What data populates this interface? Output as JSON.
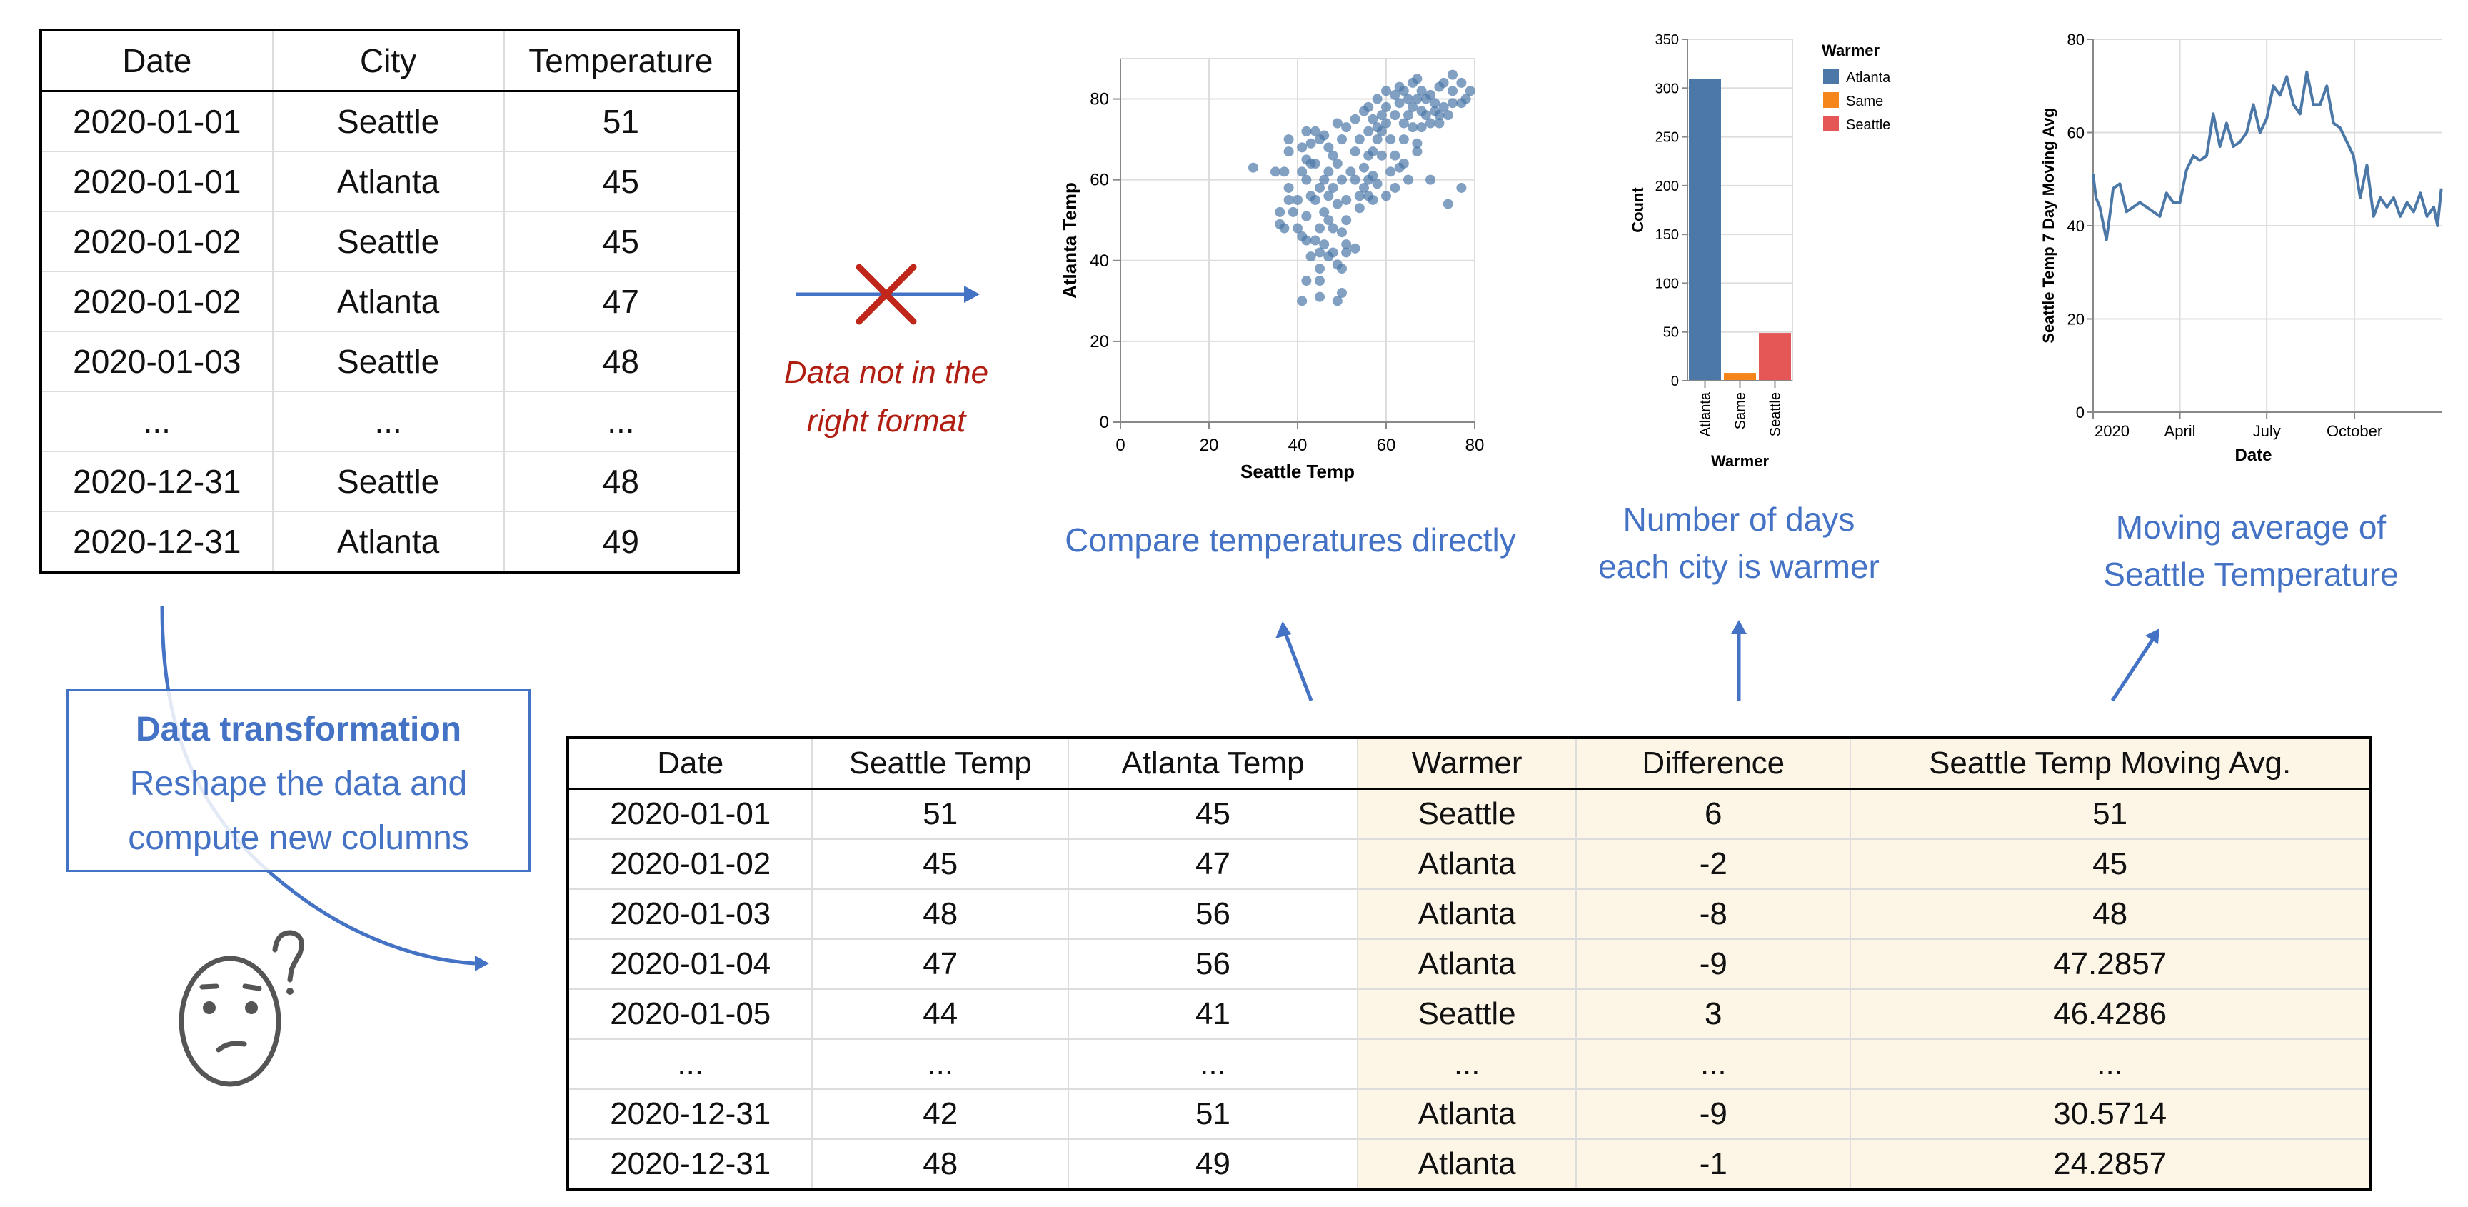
{
  "source_table": {
    "columns": [
      "Date",
      "City",
      "Temperature"
    ],
    "rows": [
      [
        "2020-01-01",
        "Seattle",
        "51"
      ],
      [
        "2020-01-01",
        "Atlanta",
        "45"
      ],
      [
        "2020-01-02",
        "Seattle",
        "45"
      ],
      [
        "2020-01-02",
        "Atlanta",
        "47"
      ],
      [
        "2020-01-03",
        "Seattle",
        "48"
      ],
      [
        "...",
        "...",
        "..."
      ],
      [
        "2020-12-31",
        "Seattle",
        "48"
      ],
      [
        "2020-12-31",
        "Atlanta",
        "49"
      ]
    ]
  },
  "error_note": {
    "line1": "Data not in the",
    "line2": "right format",
    "color": "#b01e12",
    "icon": "cross-icon"
  },
  "transform_box": {
    "title": "Data transformation",
    "line1": "Reshape the data and",
    "line2": "compute new columns",
    "icon": "confused-face-icon"
  },
  "result_table": {
    "columns": [
      "Date",
      "Seattle Temp",
      "Atlanta Temp",
      "Warmer",
      "Difference",
      "Seattle Temp Moving Avg."
    ],
    "highlight_color": "#fdf5e6",
    "rows": [
      [
        "2020-01-01",
        "51",
        "45",
        "Seattle",
        "6",
        "51"
      ],
      [
        "2020-01-02",
        "45",
        "47",
        "Atlanta",
        "-2",
        "45"
      ],
      [
        "2020-01-03",
        "48",
        "56",
        "Atlanta",
        "-8",
        "48"
      ],
      [
        "2020-01-04",
        "47",
        "56",
        "Atlanta",
        "-9",
        "47.2857"
      ],
      [
        "2020-01-05",
        "44",
        "41",
        "Seattle",
        "3",
        "46.4286"
      ],
      [
        "...",
        "...",
        "...",
        "...",
        "...",
        "..."
      ],
      [
        "2020-12-31",
        "42",
        "51",
        "Atlanta",
        "-9",
        "30.5714"
      ],
      [
        "2020-12-31",
        "48",
        "49",
        "Atlanta",
        "-1",
        "24.2857"
      ]
    ]
  },
  "captions": {
    "scatter": "Compare temperatures directly",
    "bar_line1": "Number of days",
    "bar_line2": "each city is warmer",
    "line_line1": "Moving average of",
    "line_line2": "Seattle Temperature",
    "color": "#4472c4"
  },
  "chart_data": [
    {
      "type": "scatter",
      "xlabel": "Seattle Temp",
      "ylabel": "Atlanta Temp",
      "xlim": [
        0,
        80
      ],
      "ylim": [
        0,
        90
      ],
      "xticks": [
        "0",
        "20",
        "40",
        "60",
        "80"
      ],
      "yticks": [
        "0",
        "20",
        "40",
        "60",
        "80"
      ],
      "grid": true,
      "color": "#4c78a8",
      "points": [
        [
          30,
          63
        ],
        [
          35,
          62
        ],
        [
          37,
          62
        ],
        [
          38,
          70
        ],
        [
          38,
          67
        ],
        [
          38,
          58
        ],
        [
          38,
          55
        ],
        [
          36,
          52
        ],
        [
          36,
          49
        ],
        [
          37,
          48
        ],
        [
          39,
          52
        ],
        [
          40,
          55
        ],
        [
          40,
          48
        ],
        [
          41,
          62
        ],
        [
          41,
          68
        ],
        [
          41,
          46
        ],
        [
          41,
          30
        ],
        [
          42,
          72
        ],
        [
          42,
          65
        ],
        [
          42,
          60
        ],
        [
          42,
          51
        ],
        [
          42,
          45
        ],
        [
          42,
          35
        ],
        [
          43,
          69
        ],
        [
          43,
          64
        ],
        [
          43,
          56
        ],
        [
          43,
          41
        ],
        [
          44,
          72
        ],
        [
          44,
          64
        ],
        [
          44,
          55
        ],
        [
          44,
          45
        ],
        [
          45,
          70
        ],
        [
          45,
          58
        ],
        [
          45,
          48
        ],
        [
          45,
          42
        ],
        [
          45,
          38
        ],
        [
          45,
          35
        ],
        [
          45,
          31
        ],
        [
          46,
          71
        ],
        [
          46,
          60
        ],
        [
          46,
          52
        ],
        [
          46,
          44
        ],
        [
          47,
          68
        ],
        [
          47,
          62
        ],
        [
          47,
          56
        ],
        [
          47,
          50
        ],
        [
          47,
          41
        ],
        [
          48,
          66
        ],
        [
          48,
          58
        ],
        [
          48,
          48
        ],
        [
          48,
          42
        ],
        [
          49,
          74
        ],
        [
          49,
          64
        ],
        [
          49,
          54
        ],
        [
          49,
          39
        ],
        [
          49,
          30
        ],
        [
          50,
          70
        ],
        [
          50,
          60
        ],
        [
          50,
          47
        ],
        [
          50,
          38
        ],
        [
          50,
          32
        ],
        [
          51,
          73
        ],
        [
          51,
          55
        ],
        [
          51,
          50
        ],
        [
          51,
          44
        ],
        [
          51,
          42
        ],
        [
          52,
          62
        ],
        [
          53,
          75
        ],
        [
          53,
          67
        ],
        [
          53,
          60
        ],
        [
          53,
          43
        ],
        [
          54,
          70
        ],
        [
          54,
          56
        ],
        [
          54,
          53
        ],
        [
          55,
          77
        ],
        [
          55,
          63
        ],
        [
          55,
          58
        ],
        [
          56,
          78
        ],
        [
          56,
          72
        ],
        [
          56,
          66
        ],
        [
          56,
          60
        ],
        [
          56,
          56
        ],
        [
          57,
          75
        ],
        [
          57,
          67
        ],
        [
          57,
          61
        ],
        [
          57,
          55
        ],
        [
          58,
          80
        ],
        [
          58,
          73
        ],
        [
          58,
          70
        ],
        [
          58,
          59
        ],
        [
          59,
          76
        ],
        [
          59,
          72
        ],
        [
          59,
          66
        ],
        [
          60,
          82
        ],
        [
          60,
          78
        ],
        [
          60,
          74
        ],
        [
          60,
          56
        ],
        [
          61,
          70
        ],
        [
          61,
          62
        ],
        [
          62,
          81
        ],
        [
          62,
          76
        ],
        [
          62,
          66
        ],
        [
          62,
          58
        ],
        [
          63,
          83
        ],
        [
          63,
          79
        ],
        [
          63,
          63
        ],
        [
          64,
          82
        ],
        [
          64,
          74
        ],
        [
          64,
          70
        ],
        [
          64,
          64
        ],
        [
          65,
          80
        ],
        [
          65,
          76
        ],
        [
          65,
          60
        ],
        [
          66,
          84
        ],
        [
          66,
          78
        ],
        [
          66,
          73
        ],
        [
          67,
          85
        ],
        [
          67,
          80
        ],
        [
          67,
          69
        ],
        [
          67,
          67
        ],
        [
          68,
          82
        ],
        [
          68,
          77
        ],
        [
          68,
          73
        ],
        [
          69,
          80
        ],
        [
          69,
          76
        ],
        [
          70,
          81
        ],
        [
          70,
          74
        ],
        [
          70,
          60
        ],
        [
          71,
          79
        ],
        [
          71,
          77
        ],
        [
          72,
          83
        ],
        [
          72,
          76
        ],
        [
          72,
          74
        ],
        [
          73,
          84
        ],
        [
          73,
          78
        ],
        [
          74,
          76
        ],
        [
          74,
          54
        ],
        [
          75,
          86
        ],
        [
          75,
          82
        ],
        [
          75,
          79
        ],
        [
          77,
          79
        ],
        [
          77,
          84
        ],
        [
          77,
          58
        ],
        [
          78,
          80
        ],
        [
          79,
          82
        ]
      ]
    },
    {
      "type": "bar",
      "xlabel": "Warmer",
      "ylabel": "Count",
      "categories": [
        "Atlanta",
        "Same",
        "Seattle"
      ],
      "values": [
        309,
        8,
        49
      ],
      "colors": [
        "#4c78a8",
        "#f58518",
        "#e45756"
      ],
      "ylim": [
        0,
        350
      ],
      "yticks": [
        "0",
        "50",
        "100",
        "150",
        "200",
        "250",
        "300",
        "350"
      ],
      "legend": {
        "title": "Warmer",
        "entries": [
          "Atlanta",
          "Same",
          "Seattle"
        ],
        "placement": "right"
      },
      "grid": true
    },
    {
      "type": "line",
      "xlabel": "Date",
      "ylabel": "Seattle Temp 7 Day Moving Avg",
      "ylim": [
        0,
        80
      ],
      "yticks": [
        "0",
        "20",
        "40",
        "60",
        "80"
      ],
      "xticks": [
        "2020",
        "April",
        "July",
        "October"
      ],
      "grid": true,
      "color": "#4c78a8",
      "points": [
        [
          "2020-01-01",
          51
        ],
        [
          "2020-01-04",
          46
        ],
        [
          "2020-01-08",
          44
        ],
        [
          "2020-01-12",
          40
        ],
        [
          "2020-01-15",
          37
        ],
        [
          "2020-01-19",
          43
        ],
        [
          "2020-01-22",
          48
        ],
        [
          "2020-01-29",
          49
        ],
        [
          "2020-02-05",
          43
        ],
        [
          "2020-02-12",
          44
        ],
        [
          "2020-02-19",
          45
        ],
        [
          "2020-02-26",
          44
        ],
        [
          "2020-03-04",
          43
        ],
        [
          "2020-03-11",
          42
        ],
        [
          "2020-03-18",
          47
        ],
        [
          "2020-03-25",
          45
        ],
        [
          "2020-04-01",
          45
        ],
        [
          "2020-04-08",
          52
        ],
        [
          "2020-04-15",
          55
        ],
        [
          "2020-04-22",
          54
        ],
        [
          "2020-04-29",
          55
        ],
        [
          "2020-05-06",
          64
        ],
        [
          "2020-05-13",
          57
        ],
        [
          "2020-05-20",
          62
        ],
        [
          "2020-05-27",
          57
        ],
        [
          "2020-06-03",
          58
        ],
        [
          "2020-06-10",
          60
        ],
        [
          "2020-06-17",
          66
        ],
        [
          "2020-06-24",
          60
        ],
        [
          "2020-07-01",
          63
        ],
        [
          "2020-07-08",
          70
        ],
        [
          "2020-07-15",
          68
        ],
        [
          "2020-07-22",
          72
        ],
        [
          "2020-07-29",
          66
        ],
        [
          "2020-08-05",
          64
        ],
        [
          "2020-08-12",
          73
        ],
        [
          "2020-08-19",
          66
        ],
        [
          "2020-08-26",
          66
        ],
        [
          "2020-09-02",
          70
        ],
        [
          "2020-09-09",
          62
        ],
        [
          "2020-09-16",
          61
        ],
        [
          "2020-09-23",
          58
        ],
        [
          "2020-09-30",
          55
        ],
        [
          "2020-10-07",
          46
        ],
        [
          "2020-10-14",
          53
        ],
        [
          "2020-10-21",
          42
        ],
        [
          "2020-10-28",
          46
        ],
        [
          "2020-11-04",
          44
        ],
        [
          "2020-11-11",
          46
        ],
        [
          "2020-11-18",
          42
        ],
        [
          "2020-11-25",
          45
        ],
        [
          "2020-12-02",
          43
        ],
        [
          "2020-12-09",
          47
        ],
        [
          "2020-12-16",
          42
        ],
        [
          "2020-12-23",
          44
        ],
        [
          "2020-12-27",
          40
        ],
        [
          "2020-12-31",
          48
        ]
      ]
    }
  ]
}
